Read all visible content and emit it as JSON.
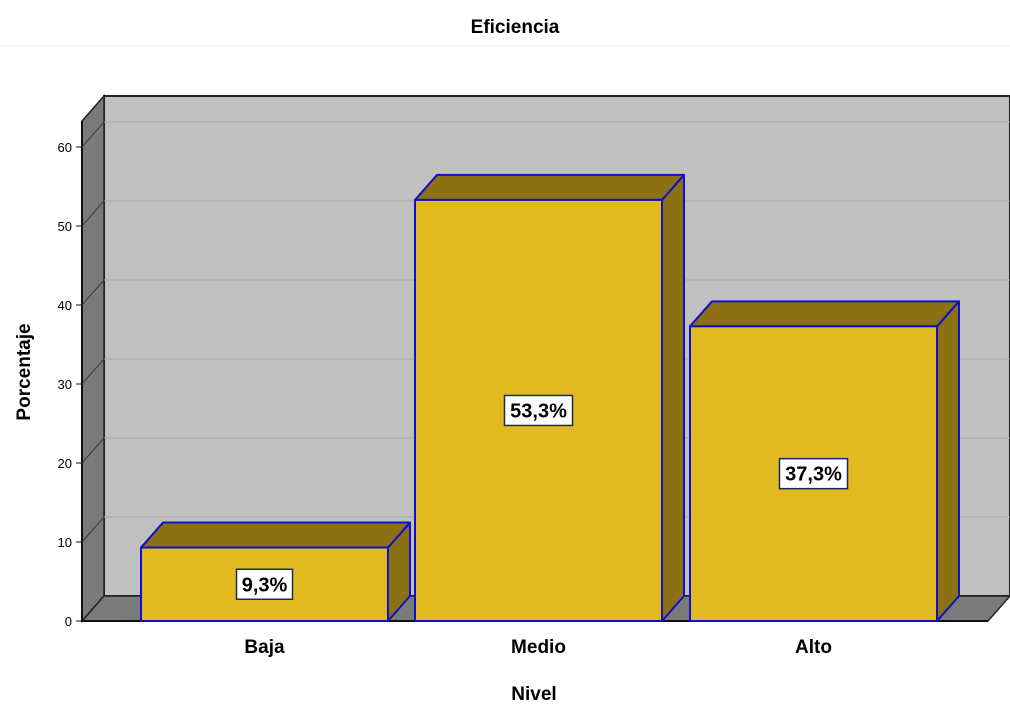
{
  "chart_data": {
    "type": "bar",
    "title": "Eficiencia",
    "xlabel": "Nivel",
    "ylabel": "Porcentaje",
    "categories": [
      "Baja",
      "Medio",
      "Alto"
    ],
    "values": [
      9.3,
      53.3,
      37.3
    ],
    "data_labels": [
      "9,3%",
      "53,3%",
      "37,3%"
    ],
    "ylim": [
      0,
      60
    ],
    "yticks": [
      "0",
      "10",
      "20",
      "30",
      "40",
      "50",
      "60"
    ],
    "grid": true,
    "style": "3d",
    "colors": {
      "bar_front": "#E1BA1F",
      "bar_top": "#8C7114",
      "bar_side": "#8C7114",
      "bar_outline": "#1010C8",
      "plot_back": "#C0C0C0",
      "floor": "#7A7A7A",
      "wall": "#7A7A7A",
      "gridline": "#A8A8A8"
    }
  }
}
